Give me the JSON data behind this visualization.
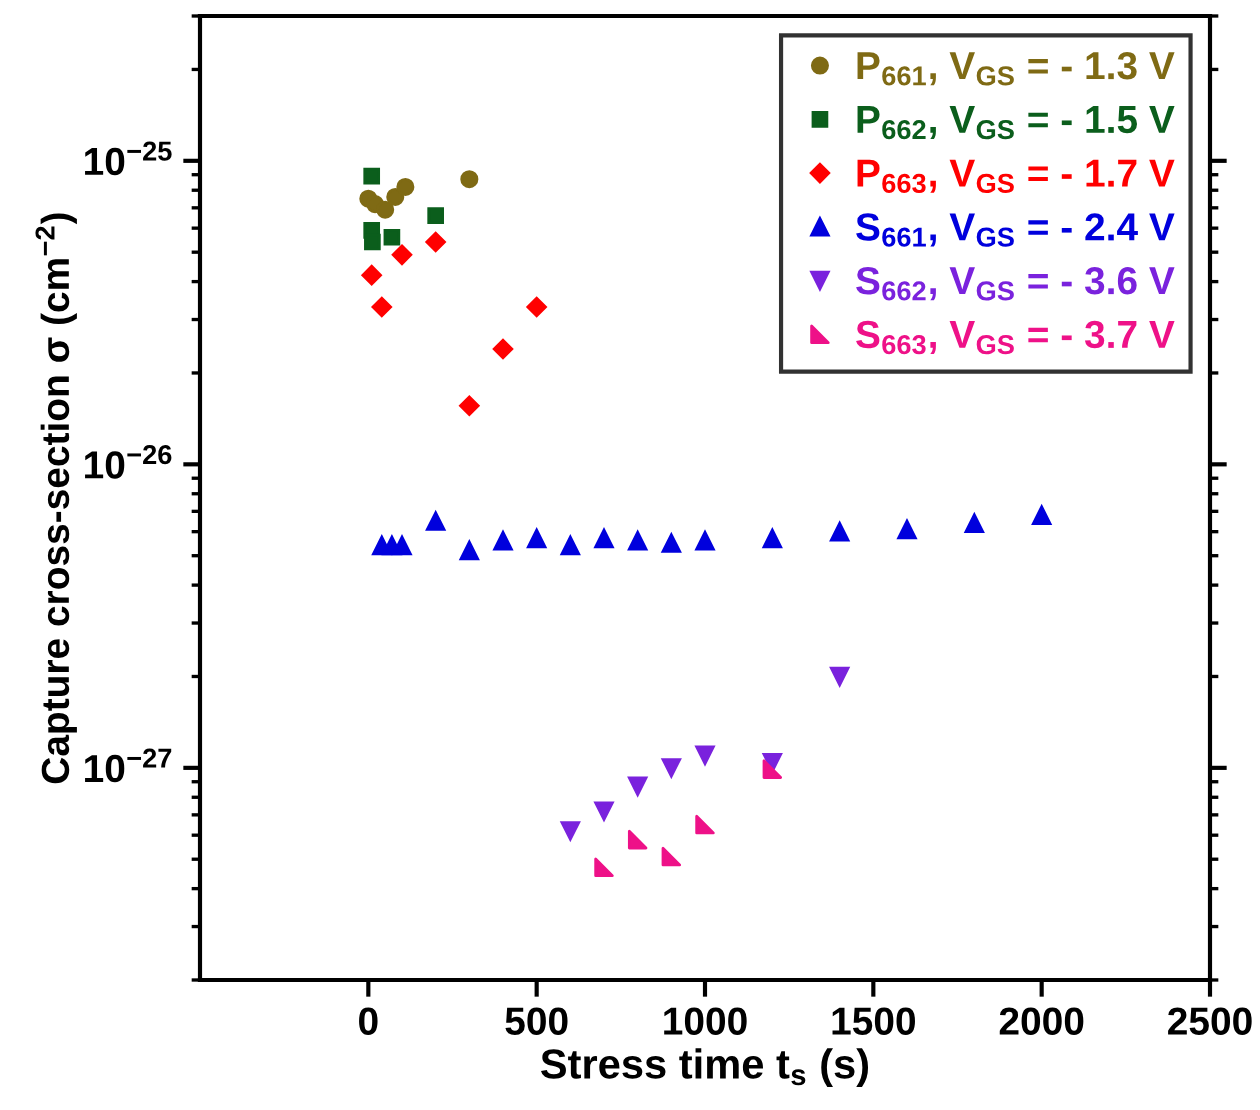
{
  "chart_data": {
    "type": "scatter",
    "xlabel": "Stress time t$_{s}$ (s)",
    "ylabel": "Capture cross-section σ (cm$^{−2}$)",
    "xlim": [
      -500,
      2500
    ],
    "xticks": [
      0,
      500,
      1000,
      1500,
      2000,
      2500
    ],
    "ylim": [
      2e-28,
      3e-25
    ],
    "yticks": [
      {
        "value": 1e-25,
        "label": "10$^{−25}$"
      },
      {
        "value": 1e-26,
        "label": "10$^{−26}$"
      },
      {
        "value": 1e-27,
        "label": "10$^{−27}$"
      }
    ],
    "log": "y",
    "grid": false,
    "legend": "top right",
    "series": [
      {
        "name": "P$_{661}$, V$_{GS}$ = - 1.3 V",
        "color": "#7f6a14",
        "marker": "circle",
        "x": [
          0,
          20,
          50,
          80,
          110,
          300
        ],
        "values": [
          7.5e-26,
          7.2e-26,
          6.9e-26,
          7.6e-26,
          8.2e-26,
          8.7e-26
        ]
      },
      {
        "name": "P$_{662}$, V$_{GS}$ = - 1.5 V",
        "color": "#0b5e1c",
        "marker": "square",
        "x": [
          10,
          10,
          12,
          70,
          200
        ],
        "values": [
          8.9e-26,
          5.9e-26,
          5.4e-26,
          5.6e-26,
          6.6e-26
        ]
      },
      {
        "name": "P$_{663}$, V$_{GS}$ = - 1.7 V",
        "color": "#ff0000",
        "marker": "diamond",
        "x": [
          10,
          40,
          100,
          200,
          300,
          400,
          500
        ],
        "values": [
          4.2e-26,
          3.3e-26,
          4.9e-26,
          5.4e-26,
          1.56e-26,
          2.4e-26,
          3.3e-26
        ]
      },
      {
        "name": "S$_{661}$, V$_{GS}$ = - 2.4 V",
        "color": "#0000dd",
        "marker": "triangle",
        "x": [
          40,
          70,
          100,
          200,
          300,
          400,
          500,
          600,
          700,
          800,
          900,
          1000,
          1200,
          1400,
          1600,
          1800,
          2000
        ],
        "values": [
          5.4e-27,
          5.4e-27,
          5.4e-27,
          6.5e-27,
          5.2e-27,
          5.6e-27,
          5.7e-27,
          5.4e-27,
          5.7e-27,
          5.6e-27,
          5.5e-27,
          5.6e-27,
          5.7e-27,
          6e-27,
          6.1e-27,
          6.4e-27,
          6.8e-27
        ]
      },
      {
        "name": "S$_{662}$, V$_{GS}$ = - 3.6 V",
        "color": "#7a22dd",
        "marker": "triangle_down",
        "x": [
          600,
          700,
          800,
          900,
          1000,
          1200,
          1400
        ],
        "values": [
          6.2e-28,
          7.2e-28,
          8.7e-28,
          1e-27,
          1.1e-27,
          1.04e-27,
          2e-27
        ]
      },
      {
        "name": "S$_{663}$, V$_{GS}$ = - 3.7 V",
        "color": "#ee1188",
        "marker": "triangle_corner",
        "x": [
          700,
          800,
          900,
          1000,
          1200
        ],
        "values": [
          4.7e-28,
          5.8e-28,
          5.1e-28,
          6.5e-28,
          9.9e-28
        ]
      }
    ]
  }
}
